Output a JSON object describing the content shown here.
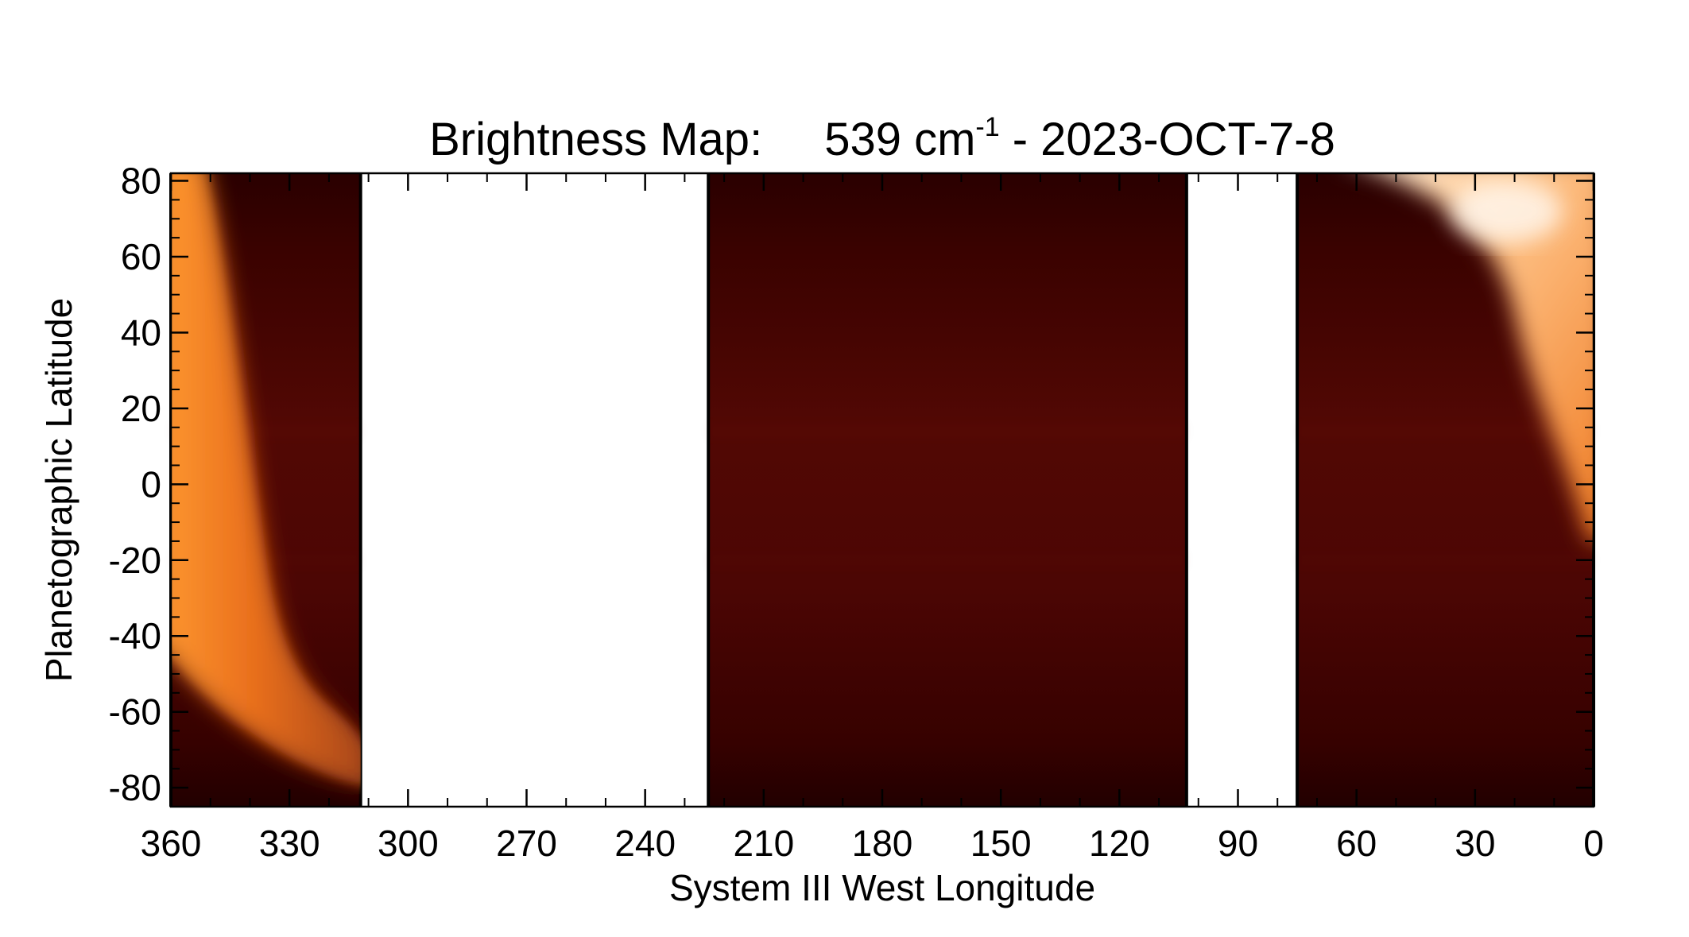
{
  "chart_data": {
    "type": "heatmap",
    "title": {
      "prefix": "Brightness Map:",
      "wavenumber": "539 cm",
      "exponent": "-1",
      "suffix": " - 2023-OCT-7-8"
    },
    "xlabel": "System III West Longitude",
    "ylabel": "Planetographic Latitude",
    "xlim": [
      360,
      0
    ],
    "ylim": [
      -85,
      82
    ],
    "x_ticks": [
      360,
      330,
      300,
      270,
      240,
      210,
      180,
      150,
      120,
      90,
      60,
      30,
      0
    ],
    "y_ticks": [
      80,
      60,
      40,
      20,
      0,
      -20,
      -40,
      -60,
      -80
    ],
    "x_tick_labels": [
      "360",
      "330",
      "300",
      "270",
      "240",
      "210",
      "180",
      "150",
      "120",
      "90",
      "60",
      "30",
      "0"
    ],
    "y_tick_labels": [
      "80",
      "60",
      "40",
      "20",
      "0",
      "-20",
      "-40",
      "-60",
      "-80"
    ],
    "data_segments": [
      {
        "lon_start": 360,
        "lon_end": 312
      },
      {
        "lon_start": 224,
        "lon_end": 103
      },
      {
        "lon_start": 75,
        "lon_end": 0
      }
    ],
    "no_data_gaps": [
      [
        312,
        224
      ],
      [
        103,
        75
      ]
    ],
    "bright_limbs": [
      {
        "lat_top": 80,
        "lon_top": 352,
        "lat_bottom": -70,
        "lon_bottom": 312
      },
      {
        "lat_top": 80,
        "lon_top": 65,
        "lat_bottom": -15,
        "lon_bottom": 0
      }
    ],
    "colors": {
      "dark": "#2a0000",
      "mid": "#5a0a02",
      "orange": "#f07010",
      "bright": "#fff2e0"
    }
  }
}
